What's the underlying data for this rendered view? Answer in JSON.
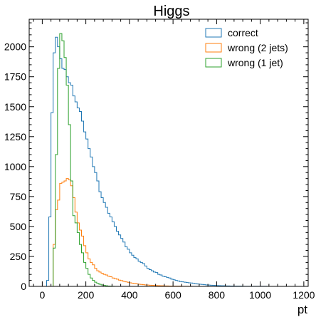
{
  "chart_data": {
    "type": "histogram",
    "title": "Higgs",
    "xlabel": "pt",
    "ylabel": "",
    "xlim": [
      -60,
      1220
    ],
    "ylim": [
      0,
      2230
    ],
    "bin_width": 10,
    "bin_start": 0,
    "x_ticks": [
      0,
      200,
      400,
      600,
      800,
      1000,
      1200
    ],
    "y_ticks": [
      0,
      250,
      500,
      750,
      1000,
      1250,
      1500,
      1750,
      2000
    ],
    "grid": false,
    "legend_position": "top-right",
    "series": [
      {
        "name": "correct",
        "color": "#1f77b4",
        "counts": [
          0,
          0,
          50,
          580,
          1450,
          1950,
          2080,
          2000,
          1900,
          1820,
          1810,
          1750,
          1700,
          1680,
          1590,
          1540,
          1490,
          1460,
          1380,
          1290,
          1230,
          1150,
          1080,
          1000,
          950,
          880,
          790,
          740,
          700,
          660,
          610,
          580,
          540,
          500,
          460,
          430,
          400,
          370,
          330,
          310,
          280,
          260,
          240,
          230,
          210,
          200,
          190,
          170,
          150,
          140,
          130,
          120,
          115,
          100,
          95,
          85,
          80,
          75,
          70,
          60,
          55,
          50,
          45,
          40,
          38,
          35,
          32,
          30,
          28,
          25,
          22,
          20,
          18,
          16,
          14,
          12,
          11,
          10,
          9,
          8,
          7,
          6,
          5,
          5,
          4,
          4,
          3,
          3,
          2,
          2,
          2,
          2,
          1,
          1,
          1,
          1,
          1,
          1,
          1,
          1,
          1,
          1,
          1,
          0,
          0,
          0,
          0,
          0,
          0,
          0,
          0,
          0,
          0,
          0,
          0,
          0,
          0,
          0
        ]
      },
      {
        "name": "wrong (2 jets)",
        "color": "#ff7f0e",
        "counts": [
          0,
          0,
          0,
          0,
          0,
          350,
          640,
          720,
          860,
          870,
          880,
          900,
          890,
          840,
          740,
          620,
          530,
          470,
          420,
          340,
          280,
          230,
          200,
          180,
          150,
          130,
          120,
          110,
          100,
          95,
          85,
          80,
          70,
          65,
          60,
          52,
          48,
          42,
          38,
          34,
          30,
          27,
          24,
          21,
          18,
          16,
          14,
          12,
          11,
          10,
          9,
          8,
          7,
          6,
          5,
          5,
          4,
          4,
          3,
          3,
          2,
          2,
          2,
          2,
          1,
          1,
          1,
          1,
          1,
          0,
          0,
          0,
          0,
          0,
          0,
          0,
          0,
          0,
          0,
          0,
          0,
          0,
          0,
          0,
          0,
          0,
          0,
          0,
          0,
          0,
          0,
          0,
          0,
          0,
          0,
          0,
          0,
          0,
          0,
          0,
          0,
          0,
          0,
          0,
          0,
          0,
          0,
          0,
          0,
          0,
          0,
          0,
          0,
          0,
          0,
          0,
          0,
          0,
          0,
          0
        ]
      },
      {
        "name": "wrong (1 jet)",
        "color": "#2ca02c",
        "counts": [
          0,
          0,
          0,
          0,
          0,
          320,
          1100,
          1820,
          2110,
          2050,
          1910,
          1680,
          1350,
          880,
          590,
          530,
          450,
          350,
          280,
          200,
          150,
          100,
          70,
          50,
          35,
          25,
          18,
          12,
          8,
          5,
          3,
          2,
          1,
          0,
          0,
          0,
          0,
          0,
          0,
          0,
          0,
          0,
          0,
          0,
          0,
          0,
          0,
          0,
          0,
          0,
          0,
          0,
          0,
          0,
          0,
          0,
          0,
          0,
          0,
          0,
          0,
          0,
          0,
          0,
          0,
          0,
          0,
          0,
          0,
          0,
          0,
          0,
          0,
          0,
          0,
          0,
          0,
          0,
          0,
          0,
          0,
          0,
          0,
          0,
          0,
          0,
          0,
          0,
          0,
          0,
          0,
          0,
          0,
          0,
          0,
          0,
          0,
          0,
          0,
          0,
          0,
          0,
          0,
          0,
          0,
          0,
          0,
          0,
          0,
          0,
          0,
          0,
          0,
          0,
          0,
          0,
          0,
          0
        ]
      }
    ]
  }
}
